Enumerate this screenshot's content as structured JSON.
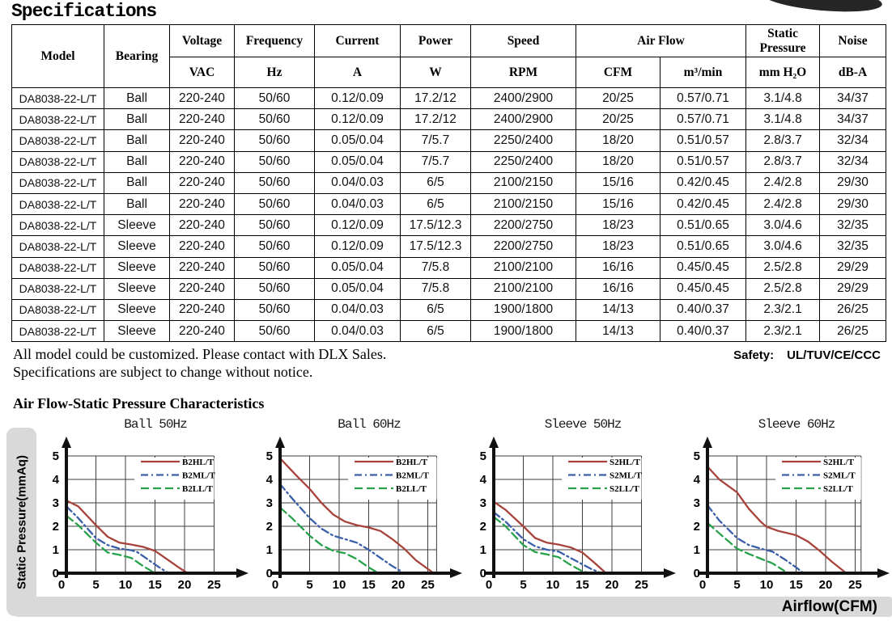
{
  "page": {
    "title": "Specifications"
  },
  "table": {
    "header": {
      "model": "Model",
      "bearing": "Bearing",
      "voltage": "Voltage",
      "frequency": "Frequency",
      "current": "Current",
      "power": "Power",
      "speed": "Speed",
      "air_flow": "Air Flow",
      "static_pressure": "Static Pressure",
      "noise": "Noise"
    },
    "units": [
      "VAC",
      "Hz",
      "A",
      "W",
      "RPM",
      "CFM",
      "m³/min",
      "mm H₂O",
      "dB-A"
    ],
    "rows": [
      [
        "DA8038-22-L/T",
        "Ball",
        "220-240",
        "50/60",
        "0.12/0.09",
        "17.2/12",
        "2400/2900",
        "20/25",
        "0.57/0.71",
        "3.1/4.8",
        "34/37"
      ],
      [
        "DA8038-22-L/T",
        "Ball",
        "220-240",
        "50/60",
        "0.12/0.09",
        "17.2/12",
        "2400/2900",
        "20/25",
        "0.57/0.71",
        "3.1/4.8",
        "34/37"
      ],
      [
        "DA8038-22-L/T",
        "Ball",
        "220-240",
        "50/60",
        "0.05/0.04",
        "7/5.7",
        "2250/2400",
        "18/20",
        "0.51/0.57",
        "2.8/3.7",
        "32/34"
      ],
      [
        "DA8038-22-L/T",
        "Ball",
        "220-240",
        "50/60",
        "0.05/0.04",
        "7/5.7",
        "2250/2400",
        "18/20",
        "0.51/0.57",
        "2.8/3.7",
        "32/34"
      ],
      [
        "DA8038-22-L/T",
        "Ball",
        "220-240",
        "50/60",
        "0.04/0.03",
        "6/5",
        "2100/2150",
        "15/16",
        "0.42/0.45",
        "2.4/2.8",
        "29/30"
      ],
      [
        "DA8038-22-L/T",
        "Ball",
        "220-240",
        "50/60",
        "0.04/0.03",
        "6/5",
        "2100/2150",
        "15/16",
        "0.42/0.45",
        "2.4/2.8",
        "29/30"
      ],
      [
        "DA8038-22-L/T",
        "Sleeve",
        "220-240",
        "50/60",
        "0.12/0.09",
        "17.5/12.3",
        "2200/2750",
        "18/23",
        "0.51/0.65",
        "3.0/4.6",
        "32/35"
      ],
      [
        "DA8038-22-L/T",
        "Sleeve",
        "220-240",
        "50/60",
        "0.12/0.09",
        "17.5/12.3",
        "2200/2750",
        "18/23",
        "0.51/0.65",
        "3.0/4.6",
        "32/35"
      ],
      [
        "DA8038-22-L/T",
        "Sleeve",
        "220-240",
        "50/60",
        "0.05/0.04",
        "7/5.8",
        "2100/2100",
        "16/16",
        "0.45/0.45",
        "2.5/2.8",
        "29/29"
      ],
      [
        "DA8038-22-L/T",
        "Sleeve",
        "220-240",
        "50/60",
        "0.05/0.04",
        "7/5.8",
        "2100/2100",
        "16/16",
        "0.45/0.45",
        "2.5/2.8",
        "29/29"
      ],
      [
        "DA8038-22-L/T",
        "Sleeve",
        "220-240",
        "50/60",
        "0.04/0.03",
        "6/5",
        "1900/1800",
        "14/13",
        "0.40/0.37",
        "2.3/2.1",
        "26/25"
      ],
      [
        "DA8038-22-L/T",
        "Sleeve",
        "220-240",
        "50/60",
        "0.04/0.03",
        "6/5",
        "1900/1800",
        "14/13",
        "0.40/0.37",
        "2.3/2.1",
        "26/25"
      ]
    ]
  },
  "notes": {
    "line1": "All model could be customized. Please contact with DLX Sales.",
    "line2": "Specifications are subject to change without notice."
  },
  "safety": {
    "label": "Safety:",
    "value": "UL/TUV/CE/CCC"
  },
  "charts_section": {
    "title": "Air Flow-Static Pressure Characteristics",
    "ylabel": "Static Pressure(mmAq)",
    "xlabel": "Airflow(CFM)"
  },
  "colors": {
    "curve_high": "#a8433c",
    "curve_mid": "#3a5fa8",
    "curve_low": "#27a24b",
    "gray_bar": "#d9d9d9",
    "table_border": "#000000"
  },
  "chart_data": [
    {
      "type": "line",
      "title": "Ball 50Hz",
      "xlabel": "Airflow(CFM)",
      "ylabel": "Static Pressure(mmAq)",
      "xlim": [
        0,
        25
      ],
      "ylim": [
        0,
        5
      ],
      "xticks": [
        0,
        5,
        10,
        15,
        20,
        25
      ],
      "yticks": [
        0,
        1,
        2,
        3,
        4,
        5
      ],
      "grid": true,
      "legend_position": "upper right",
      "xbox": 25,
      "series": [
        {
          "name": "B2HL/T",
          "color": "#a8433c",
          "style": "solid",
          "points": [
            [
              0,
              3.1
            ],
            [
              2,
              2.85
            ],
            [
              5,
              2.05
            ],
            [
              7,
              1.55
            ],
            [
              9,
              1.3
            ],
            [
              11,
              1.22
            ],
            [
              13,
              1.12
            ],
            [
              15,
              0.95
            ],
            [
              17,
              0.6
            ],
            [
              19,
              0.25
            ],
            [
              20.5,
              0
            ]
          ]
        },
        {
          "name": "B2ML/T",
          "color": "#3a5fa8",
          "style": "dashdot",
          "points": [
            [
              0,
              2.85
            ],
            [
              2,
              2.35
            ],
            [
              5,
              1.5
            ],
            [
              7,
              1.2
            ],
            [
              9,
              1.05
            ],
            [
              11,
              0.98
            ],
            [
              12,
              0.9
            ],
            [
              14,
              0.55
            ],
            [
              16,
              0.2
            ],
            [
              17,
              0.05
            ]
          ]
        },
        {
          "name": "B2LL/T",
          "color": "#27a24b",
          "style": "dash",
          "points": [
            [
              0,
              2.45
            ],
            [
              2,
              2.05
            ],
            [
              5,
              1.3
            ],
            [
              7,
              0.88
            ],
            [
              9,
              0.78
            ],
            [
              11,
              0.65
            ],
            [
              13,
              0.3
            ],
            [
              15,
              0
            ]
          ]
        }
      ]
    },
    {
      "type": "line",
      "title": "Ball 60Hz",
      "xlabel": "Airflow(CFM)",
      "ylabel": "Static Pressure(mmAq)",
      "xlim": [
        0,
        25
      ],
      "ylim": [
        0,
        5
      ],
      "xticks": [
        0,
        5,
        10,
        15,
        20,
        25
      ],
      "yticks": [
        0,
        1,
        2,
        3,
        4,
        5
      ],
      "grid": true,
      "legend_position": "upper right",
      "xbox": 26.5,
      "series": [
        {
          "name": "B2HL/T",
          "color": "#a8433c",
          "style": "solid",
          "points": [
            [
              0,
              4.9
            ],
            [
              3,
              4.1
            ],
            [
              5,
              3.6
            ],
            [
              7,
              3.0
            ],
            [
              9,
              2.5
            ],
            [
              11,
              2.2
            ],
            [
              13,
              2.05
            ],
            [
              15,
              1.95
            ],
            [
              17,
              1.8
            ],
            [
              19,
              1.45
            ],
            [
              21,
              1.05
            ],
            [
              23,
              0.55
            ],
            [
              26,
              0
            ]
          ]
        },
        {
          "name": "B2ML/T",
          "color": "#3a5fa8",
          "style": "dashdot",
          "points": [
            [
              0,
              3.8
            ],
            [
              2,
              3.2
            ],
            [
              5,
              2.35
            ],
            [
              7,
              1.9
            ],
            [
              9,
              1.6
            ],
            [
              11,
              1.45
            ],
            [
              13,
              1.3
            ],
            [
              15,
              1.0
            ],
            [
              17,
              0.65
            ],
            [
              19,
              0.3
            ],
            [
              20.5,
              0.08
            ]
          ]
        },
        {
          "name": "B2LL/T",
          "color": "#27a24b",
          "style": "dash",
          "points": [
            [
              0,
              2.8
            ],
            [
              2,
              2.35
            ],
            [
              5,
              1.6
            ],
            [
              7,
              1.2
            ],
            [
              9,
              0.95
            ],
            [
              11,
              0.85
            ],
            [
              13,
              0.6
            ],
            [
              15,
              0.25
            ],
            [
              16.5,
              0.02
            ]
          ]
        }
      ]
    },
    {
      "type": "line",
      "title": "Sleeve 50Hz",
      "xlabel": "Airflow(CFM)",
      "ylabel": "Static Pressure(mmAq)",
      "xlim": [
        0,
        25
      ],
      "ylim": [
        0,
        5
      ],
      "xticks": [
        0,
        5,
        10,
        15,
        20,
        25
      ],
      "yticks": [
        0,
        1,
        2,
        3,
        4,
        5
      ],
      "grid": true,
      "legend_position": "upper right",
      "xbox": 25,
      "series": [
        {
          "name": "S2HL/T",
          "color": "#a8433c",
          "style": "solid",
          "points": [
            [
              0,
              3.05
            ],
            [
              2,
              2.7
            ],
            [
              5,
              2.0
            ],
            [
              7,
              1.5
            ],
            [
              9,
              1.3
            ],
            [
              11,
              1.22
            ],
            [
              13,
              1.1
            ],
            [
              15,
              0.88
            ],
            [
              17,
              0.45
            ],
            [
              19,
              0
            ]
          ]
        },
        {
          "name": "S2ML/T",
          "color": "#3a5fa8",
          "style": "dashdot",
          "points": [
            [
              0,
              2.6
            ],
            [
              2,
              2.2
            ],
            [
              5,
              1.45
            ],
            [
              7,
              1.15
            ],
            [
              9,
              1.0
            ],
            [
              11,
              0.92
            ],
            [
              13,
              0.65
            ],
            [
              15,
              0.38
            ],
            [
              16.5,
              0.18
            ],
            [
              18,
              0.02
            ]
          ]
        },
        {
          "name": "S2LL/T",
          "color": "#27a24b",
          "style": "dash",
          "points": [
            [
              0,
              2.4
            ],
            [
              2,
              2.0
            ],
            [
              5,
              1.2
            ],
            [
              7,
              0.9
            ],
            [
              9,
              0.8
            ],
            [
              11,
              0.68
            ],
            [
              13,
              0.35
            ],
            [
              15,
              0.08
            ],
            [
              16,
              0.02
            ]
          ]
        }
      ]
    },
    {
      "type": "line",
      "title": "Sleeve 60Hz",
      "xlabel": "Airflow(CFM)",
      "ylabel": "Static Pressure(mmAq)",
      "xlim": [
        0,
        25
      ],
      "ylim": [
        0,
        5
      ],
      "xticks": [
        0,
        5,
        10,
        15,
        20,
        25
      ],
      "yticks": [
        0,
        1,
        2,
        3,
        4,
        5
      ],
      "grid": true,
      "legend_position": "upper right",
      "xbox": 26,
      "series": [
        {
          "name": "S2HL/T",
          "color": "#a8433c",
          "style": "solid",
          "points": [
            [
              0,
              4.55
            ],
            [
              2,
              4.0
            ],
            [
              5,
              3.45
            ],
            [
              7,
              2.75
            ],
            [
              9,
              2.2
            ],
            [
              10,
              1.98
            ],
            [
              12,
              1.8
            ],
            [
              15,
              1.62
            ],
            [
              17,
              1.35
            ],
            [
              19,
              0.95
            ],
            [
              21,
              0.5
            ],
            [
              23.5,
              0
            ]
          ]
        },
        {
          "name": "S2ML/T",
          "color": "#3a5fa8",
          "style": "dashdot",
          "points": [
            [
              0,
              2.9
            ],
            [
              2,
              2.25
            ],
            [
              5,
              1.5
            ],
            [
              7,
              1.2
            ],
            [
              9,
              1.05
            ],
            [
              11,
              0.92
            ],
            [
              13,
              0.6
            ],
            [
              15,
              0.25
            ],
            [
              16,
              0.05
            ]
          ]
        },
        {
          "name": "S2LL/T",
          "color": "#27a24b",
          "style": "dash",
          "points": [
            [
              0,
              2.15
            ],
            [
              2,
              1.7
            ],
            [
              5,
              1.05
            ],
            [
              7,
              0.82
            ],
            [
              9,
              0.62
            ],
            [
              11,
              0.42
            ],
            [
              13,
              0.1
            ]
          ]
        }
      ]
    }
  ]
}
